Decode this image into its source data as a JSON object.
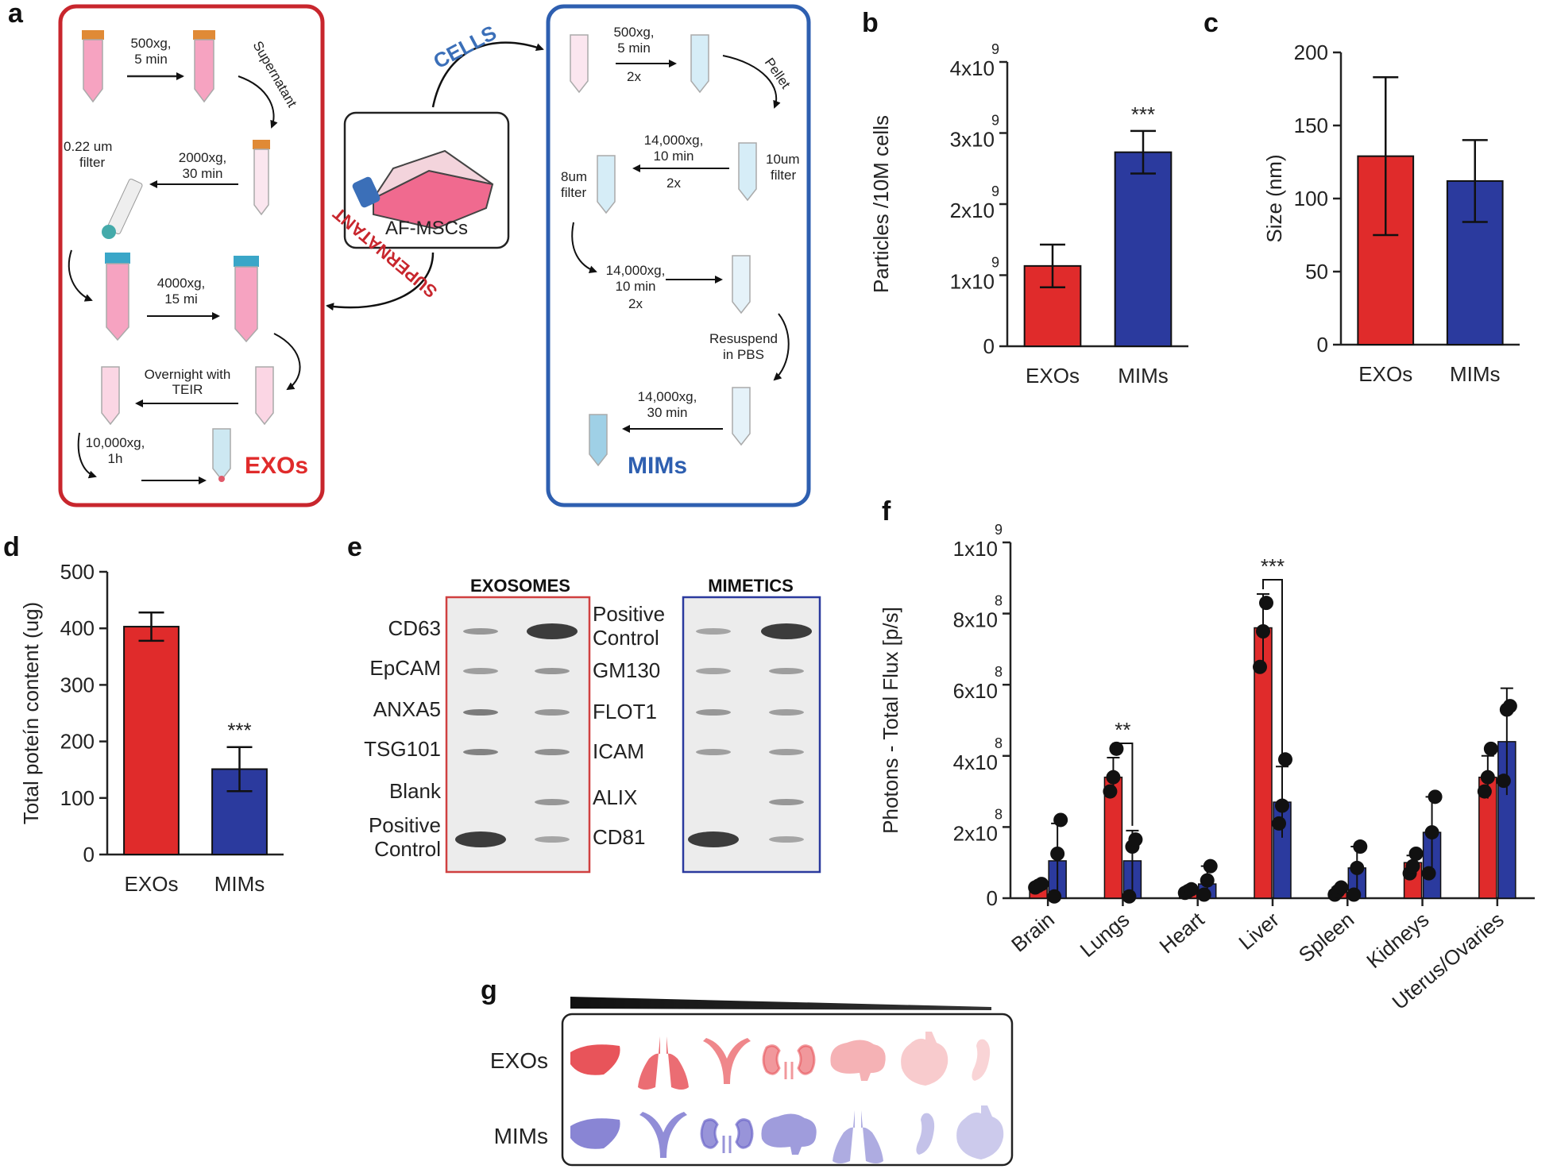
{
  "colors": {
    "exos": "#e02b2b",
    "mims": "#2b3a9e",
    "exo_box": "#c8262d",
    "mim_box": "#2e5fb0"
  },
  "panel_letters": [
    "a",
    "b",
    "c",
    "d",
    "e",
    "f",
    "g"
  ],
  "panel_a": {
    "cells_label": "CELLS",
    "supernatant_label": "SUPERNATANT",
    "center_label": "AF-MSCs",
    "exo_steps": {
      "s1": "500xg,",
      "s1b": "5 min",
      "supernatant": "Supernatant",
      "filter": "0.22 um",
      "filter2": "filter",
      "s2": "2000xg,",
      "s2b": "30 min",
      "s3": "4000xg,",
      "s3b": "15 mi",
      "s4": "Overnight with",
      "s4b": "TEIR",
      "s5": "10,000xg,",
      "s5b": "1h",
      "result": "EXOs"
    },
    "mim_steps": {
      "s1": "500xg,",
      "s1b": "5 min",
      "s1c": "2x",
      "pellet": "Pellet",
      "s2": "14,000xg,",
      "s2b": "10 min",
      "s2c": "2x",
      "f8": "8um",
      "f8b": "filter",
      "f10": "10um",
      "f10b": "filter",
      "s3": "14,000xg,",
      "s3b": "10 min",
      "s3c": "2x",
      "resus": "Resuspend",
      "resusb": "in PBS",
      "s4": "14,000xg,",
      "s4b": "30 min",
      "result": "MIMs"
    }
  },
  "panel_e": {
    "exo_title": "EXOSOMES",
    "mim_title": "MIMETICS",
    "left_labels": [
      "CD63",
      "EpCAM",
      "ANXA5",
      "TSG101",
      "Blank",
      "Positive",
      "Control"
    ],
    "right_labels": [
      "Positive",
      "Control",
      "GM130",
      "FLOT1",
      "ICAM",
      "ALIX",
      "CD81"
    ]
  },
  "panel_g": {
    "row1": "EXOs",
    "row2": "MIMs",
    "exo_organs": [
      "liver-icon",
      "lungs-icon",
      "uterus-icon",
      "kidneys-icon",
      "brain-icon",
      "heart-icon",
      "spleen-icon"
    ],
    "mim_organs": [
      "liver-icon",
      "uterus-icon",
      "kidneys-icon",
      "brain-icon",
      "lungs-icon",
      "spleen-icon",
      "heart-icon"
    ]
  },
  "chart_data": [
    {
      "panel": "b",
      "type": "bar",
      "categories": [
        "EXOs",
        "MIMs"
      ],
      "values": [
        1130000000.0,
        2730000000.0
      ],
      "errors": [
        300000000.0,
        300000000.0
      ],
      "ylabel": "Particles /10M cells",
      "ylim": [
        0,
        4000000000.0
      ],
      "yticks": [
        {
          "base": "0",
          "exp": ""
        },
        {
          "base": "1x10",
          "exp": "9"
        },
        {
          "base": "2x10",
          "exp": "9"
        },
        {
          "base": "3x10",
          "exp": "9"
        },
        {
          "base": "4x10",
          "exp": "9"
        }
      ],
      "annotation": "***"
    },
    {
      "panel": "c",
      "type": "bar",
      "categories": [
        "EXOs",
        "MIMs"
      ],
      "values": [
        129,
        112
      ],
      "errors": [
        54,
        28
      ],
      "ylabel": "Size (nm)",
      "ylim": [
        0,
        200
      ],
      "yticks": [
        "0",
        "50",
        "100",
        "150",
        "200"
      ]
    },
    {
      "panel": "d",
      "type": "bar",
      "categories": [
        "EXOs",
        "MIMs"
      ],
      "values": [
        403,
        151
      ],
      "errors": [
        25,
        39
      ],
      "ylabel": "Total poteín content (ug)",
      "ylim": [
        0,
        500
      ],
      "yticks": [
        "0",
        "100",
        "200",
        "300",
        "400",
        "500"
      ],
      "annotation": "***"
    },
    {
      "panel": "f",
      "type": "bar",
      "categories": [
        "Brain",
        "Lungs",
        "Heart",
        "Liver",
        "Spleen",
        "Kidneys",
        "Uterus/Ovaries"
      ],
      "series": [
        {
          "values": [
            35000000.0,
            340000000.0,
            20000000.0,
            760000000.0,
            20000000.0,
            100000000.0,
            340000000.0
          ],
          "errors": [
            5000000.0,
            55000000.0,
            5000000.0,
            95000000.0,
            10000000.0,
            20000000.0,
            60000000.0
          ],
          "points": [
            [
              30000000.0,
              35000000.0,
              40000000.0
            ],
            [
              300000000.0,
              340000000.0,
              420000000.0
            ],
            [
              15000000.0,
              20000000.0,
              25000000.0
            ],
            [
              650000000.0,
              750000000.0,
              830000000.0
            ],
            [
              10000000.0,
              20000000.0,
              30000000.0
            ],
            [
              70000000.0,
              90000000.0,
              125000000.0
            ],
            [
              300000000.0,
              340000000.0,
              420000000.0
            ]
          ]
        },
        {
          "values": [
            105000000.0,
            105000000.0,
            40000000.0,
            270000000.0,
            85000000.0,
            185000000.0,
            440000000.0
          ],
          "errors": [
            105000000.0,
            85000000.0,
            50000000.0,
            100000000.0,
            60000000.0,
            100000000.0,
            150000000.0
          ],
          "points": [
            [
              5000000.0,
              125000000.0,
              220000000.0
            ],
            [
              5000000.0,
              145000000.0,
              165000000.0
            ],
            [
              10000000.0,
              50000000.0,
              90000000.0
            ],
            [
              210000000.0,
              260000000.0,
              390000000.0
            ],
            [
              10000000.0,
              85000000.0,
              145000000.0
            ],
            [
              70000000.0,
              185000000.0,
              285000000.0
            ],
            [
              330000000.0,
              530000000.0,
              540000000.0
            ]
          ]
        }
      ],
      "ylabel": "Photons - Total Flux [p/s]",
      "ylim": [
        0,
        1000000000.0
      ],
      "yticks": [
        {
          "base": "0",
          "exp": ""
        },
        {
          "base": "2x10",
          "exp": "8"
        },
        {
          "base": "4x10",
          "exp": "8"
        },
        {
          "base": "6x10",
          "exp": "8"
        },
        {
          "base": "8x10",
          "exp": "8"
        },
        {
          "base": "1x10",
          "exp": "9"
        }
      ],
      "brackets": [
        {
          "category": "Lungs",
          "label": "**"
        },
        {
          "category": "Liver",
          "label": "***"
        }
      ]
    }
  ]
}
